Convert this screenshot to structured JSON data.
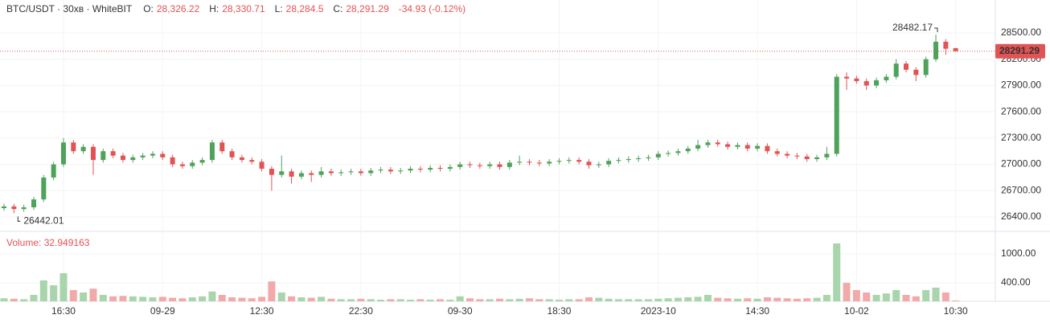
{
  "chart_data": {
    "type": "candlestick",
    "title": "BTC/USDT · 30хв · WhiteBIT",
    "ohlc_header": [
      {
        "label": "O:",
        "value": "28,326.22"
      },
      {
        "label": "H:",
        "value": "28,330.71"
      },
      {
        "label": "L:",
        "value": "28,284.5"
      },
      {
        "label": "C:",
        "value": "28,291.29"
      }
    ],
    "change": "-34.93 (-0.12%)",
    "volume_label": "Volume:",
    "categories": [
      null,
      null,
      null,
      null,
      null,
      null,
      "16:30",
      null,
      null,
      null,
      null,
      null,
      null,
      null,
      null,
      null,
      "09-29",
      null,
      null,
      null,
      null,
      null,
      null,
      null,
      null,
      null,
      "12:30",
      null,
      null,
      null,
      null,
      null,
      null,
      null,
      null,
      null,
      "22:30",
      null,
      null,
      null,
      null,
      null,
      null,
      null,
      null,
      null,
      "09-30",
      null,
      null,
      null,
      null,
      null,
      null,
      null,
      null,
      null,
      "18:30",
      null,
      null,
      null,
      null,
      null,
      null,
      null,
      null,
      null,
      "2023-10",
      null,
      null,
      null,
      null,
      null,
      null,
      null,
      null,
      null,
      "14:30",
      null,
      null,
      null,
      null,
      null,
      null,
      null,
      null,
      null,
      "10-02",
      null,
      null,
      null,
      null,
      null,
      null,
      null,
      null,
      null,
      "10:30"
    ],
    "open": [
      26500,
      26520,
      26490,
      26510,
      26600,
      26850,
      27000,
      27250,
      27150,
      27200,
      27050,
      27150,
      27100,
      27050,
      27080,
      27100,
      27120,
      27080,
      27000,
      26980,
      27020,
      27050,
      27250,
      27150,
      27080,
      27050,
      27030,
      26950,
      26880,
      26920,
      26860,
      26900,
      26880,
      26920,
      26900,
      26910,
      26920,
      26900,
      26930,
      26940,
      26920,
      26930,
      26950,
      26940,
      26960,
      26950,
      26970,
      27000,
      26990,
      26980,
      27000,
      26970,
      27020,
      27030,
      27020,
      27010,
      27030,
      27040,
      27050,
      27030,
      26990,
      27000,
      27040,
      27050,
      27060,
      27070,
      27080,
      27120,
      27130,
      27150,
      27180,
      27220,
      27250,
      27230,
      27200,
      27220,
      27180,
      27210,
      27150,
      27120,
      27100,
      27090,
      27060,
      27080,
      27120,
      28000,
      27980,
      27950,
      27900,
      27960,
      28000,
      28150,
      28080,
      28020,
      28200,
      28400,
      28326.22
    ],
    "high": [
      26550,
      26550,
      26540,
      26630,
      26880,
      27030,
      27300,
      27280,
      27230,
      27230,
      27180,
      27180,
      27130,
      27110,
      27130,
      27150,
      27150,
      27110,
      27030,
      27050,
      27080,
      27280,
      27280,
      27180,
      27110,
      27080,
      27060,
      26980,
      27100,
      26950,
      26930,
      26930,
      26970,
      26950,
      26940,
      26950,
      26950,
      26960,
      26970,
      26970,
      26960,
      26980,
      26980,
      26990,
      26990,
      27000,
      27030,
      27030,
      27020,
      27030,
      27030,
      27050,
      27100,
      27060,
      27050,
      27060,
      27070,
      27080,
      27080,
      27060,
      27030,
      27070,
      27080,
      27090,
      27100,
      27110,
      27150,
      27160,
      27180,
      27210,
      27280,
      27280,
      27280,
      27260,
      27250,
      27250,
      27240,
      27240,
      27180,
      27150,
      27130,
      27120,
      27110,
      27200,
      28030,
      28050,
      28010,
      27980,
      27990,
      28030,
      28200,
      28180,
      28110,
      28230,
      28482.17,
      28430,
      28330.71
    ],
    "low": [
      26470,
      26442.01,
      26460,
      26480,
      26570,
      26820,
      26970,
      27120,
      27120,
      26880,
      27020,
      27070,
      27020,
      27020,
      27050,
      27070,
      27050,
      26970,
      26950,
      26950,
      26990,
      27020,
      27120,
      27050,
      27020,
      27000,
      26920,
      26700,
      26850,
      26780,
      26830,
      26800,
      26850,
      26870,
      26870,
      26880,
      26870,
      26870,
      26900,
      26890,
      26890,
      26900,
      26910,
      26910,
      26920,
      26920,
      26940,
      26960,
      26950,
      26950,
      26940,
      26940,
      26990,
      26990,
      26980,
      26980,
      27000,
      27010,
      27000,
      26950,
      26960,
      26970,
      27010,
      27020,
      27030,
      27040,
      27050,
      27090,
      27100,
      27120,
      27150,
      27190,
      27200,
      27170,
      27170,
      27150,
      27150,
      27120,
      27090,
      27070,
      27060,
      27030,
      27030,
      27050,
      27090,
      27850,
      27920,
      27850,
      27870,
      27930,
      27970,
      28050,
      27950,
      27990,
      28170,
      28250,
      28284.5
    ],
    "close": [
      26520,
      26490,
      26510,
      26600,
      26850,
      27000,
      27250,
      27150,
      27200,
      27050,
      27150,
      27100,
      27050,
      27080,
      27100,
      27120,
      27080,
      27000,
      26980,
      27020,
      27050,
      27250,
      27150,
      27080,
      27050,
      27030,
      26950,
      26880,
      26920,
      26860,
      26900,
      26880,
      26920,
      26900,
      26910,
      26920,
      26900,
      26930,
      26940,
      26920,
      26930,
      26950,
      26940,
      26960,
      26950,
      26970,
      27000,
      26990,
      26980,
      27000,
      26970,
      27020,
      27030,
      27020,
      27010,
      27030,
      27040,
      27050,
      27030,
      26990,
      27000,
      27040,
      27050,
      27060,
      27070,
      27080,
      27120,
      27130,
      27150,
      27180,
      27220,
      27250,
      27230,
      27200,
      27220,
      27180,
      27210,
      27150,
      27120,
      27100,
      27090,
      27060,
      27080,
      27120,
      28000,
      27980,
      27950,
      27900,
      27960,
      28000,
      28150,
      28080,
      28020,
      28200,
      28400,
      28320,
      28291.29
    ],
    "volume": [
      80,
      70,
      60,
      150,
      450,
      350,
      600,
      250,
      200,
      280,
      150,
      120,
      130,
      120,
      110,
      100,
      110,
      90,
      80,
      100,
      120,
      220,
      150,
      100,
      90,
      80,
      110,
      430,
      200,
      120,
      100,
      90,
      110,
      70,
      60,
      60,
      70,
      60,
      50,
      60,
      60,
      50,
      60,
      50,
      60,
      50,
      120,
      80,
      60,
      60,
      70,
      60,
      70,
      80,
      60,
      60,
      50,
      60,
      60,
      100,
      90,
      70,
      60,
      60,
      60,
      60,
      70,
      80,
      90,
      100,
      110,
      150,
      90,
      80,
      70,
      80,
      70,
      100,
      90,
      80,
      70,
      80,
      90,
      150,
      1217,
      400,
      250,
      200,
      150,
      180,
      250,
      150,
      120,
      250,
      300,
      200,
      32.949163
    ],
    "up_color": "#4ea25a",
    "down_color": "#e25353",
    "volume_up_color": "#a8d5ab",
    "volume_down_color": "#f2a9a9",
    "ylim": [
      26235,
      28876
    ],
    "yticks": [
      {
        "value": 26400,
        "label": "26400.00"
      },
      {
        "value": 26700,
        "label": "26700.00"
      },
      {
        "value": 27000,
        "label": "27000.00"
      },
      {
        "value": 27300,
        "label": "27300.00"
      },
      {
        "value": 27600,
        "label": "27600.00"
      },
      {
        "value": 27900,
        "label": "27900.00"
      },
      {
        "value": 28200,
        "label": "28200.00"
      },
      {
        "value": 28500,
        "label": "28500.00"
      }
    ],
    "volume_ylim": [
      17,
      1467
    ],
    "volume_yticks": [
      {
        "value": 400,
        "label": "400.00"
      },
      {
        "value": 1000,
        "label": "1000.00"
      }
    ],
    "grid": true
  }
}
